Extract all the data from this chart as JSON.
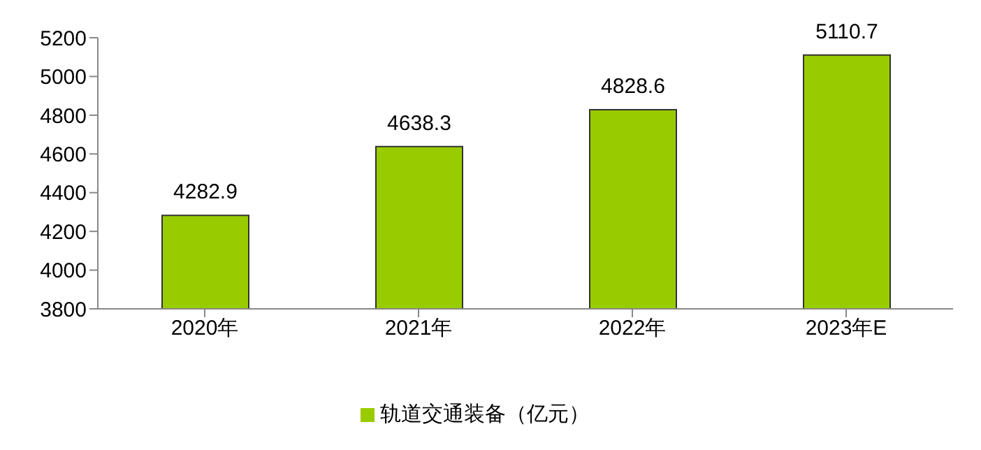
{
  "chart_data": {
    "type": "bar",
    "categories": [
      "2020年",
      "2021年",
      "2022年",
      "2023年E"
    ],
    "series": [
      {
        "name": "轨道交通装备（亿元）",
        "color": "#99cc00",
        "values": [
          4282.9,
          4638.3,
          4828.6,
          5110.7
        ]
      }
    ],
    "ylim": [
      3800,
      5200
    ],
    "yticks": [
      3800,
      4000,
      4200,
      4400,
      4600,
      4800,
      5000,
      5200
    ],
    "grid": false,
    "legend": "bottom",
    "data_labels": true
  }
}
